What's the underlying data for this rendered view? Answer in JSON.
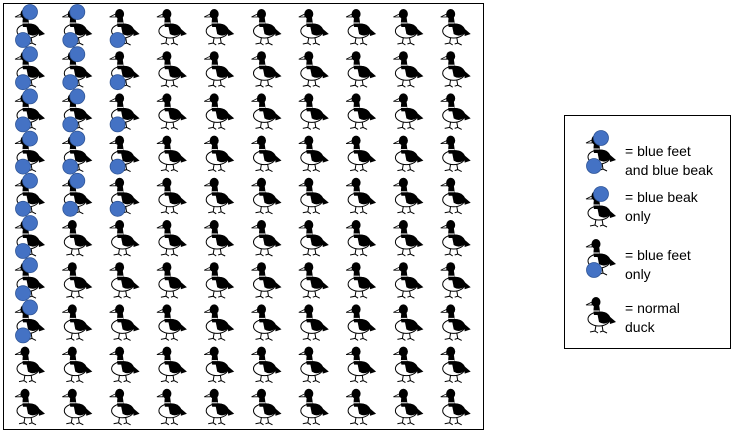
{
  "colors": {
    "marker": "#4472C4",
    "marker_stroke": "#2F5597",
    "duck_body": "#000000",
    "duck_outline": "#000000",
    "duck_fill": "#ffffff"
  },
  "icons": {
    "duck": "duck-icon",
    "blue_dot": "blue-dot-icon"
  },
  "grid": {
    "rows": 10,
    "columns": 10,
    "blue_feet_and_beak": [
      [
        0,
        0
      ],
      [
        0,
        1
      ],
      [
        1,
        0
      ],
      [
        1,
        1
      ],
      [
        2,
        0
      ],
      [
        2,
        1
      ],
      [
        3,
        0
      ],
      [
        3,
        1
      ],
      [
        4,
        0
      ],
      [
        4,
        1
      ],
      [
        5,
        0
      ],
      [
        6,
        0
      ],
      [
        7,
        0
      ]
    ],
    "blue_beak_only": [],
    "blue_feet_only": [
      [
        0,
        2
      ],
      [
        1,
        2
      ],
      [
        2,
        2
      ],
      [
        3,
        2
      ],
      [
        4,
        2
      ]
    ]
  },
  "legend": {
    "items": [
      {
        "type": "both",
        "line1": "= blue feet",
        "line2": "and blue beak"
      },
      {
        "type": "beak",
        "line1": "= blue beak",
        "line2": "only"
      },
      {
        "type": "feet",
        "line1": "= blue feet",
        "line2": "only"
      },
      {
        "type": "normal",
        "line1": "= normal",
        "line2": "duck"
      }
    ]
  }
}
